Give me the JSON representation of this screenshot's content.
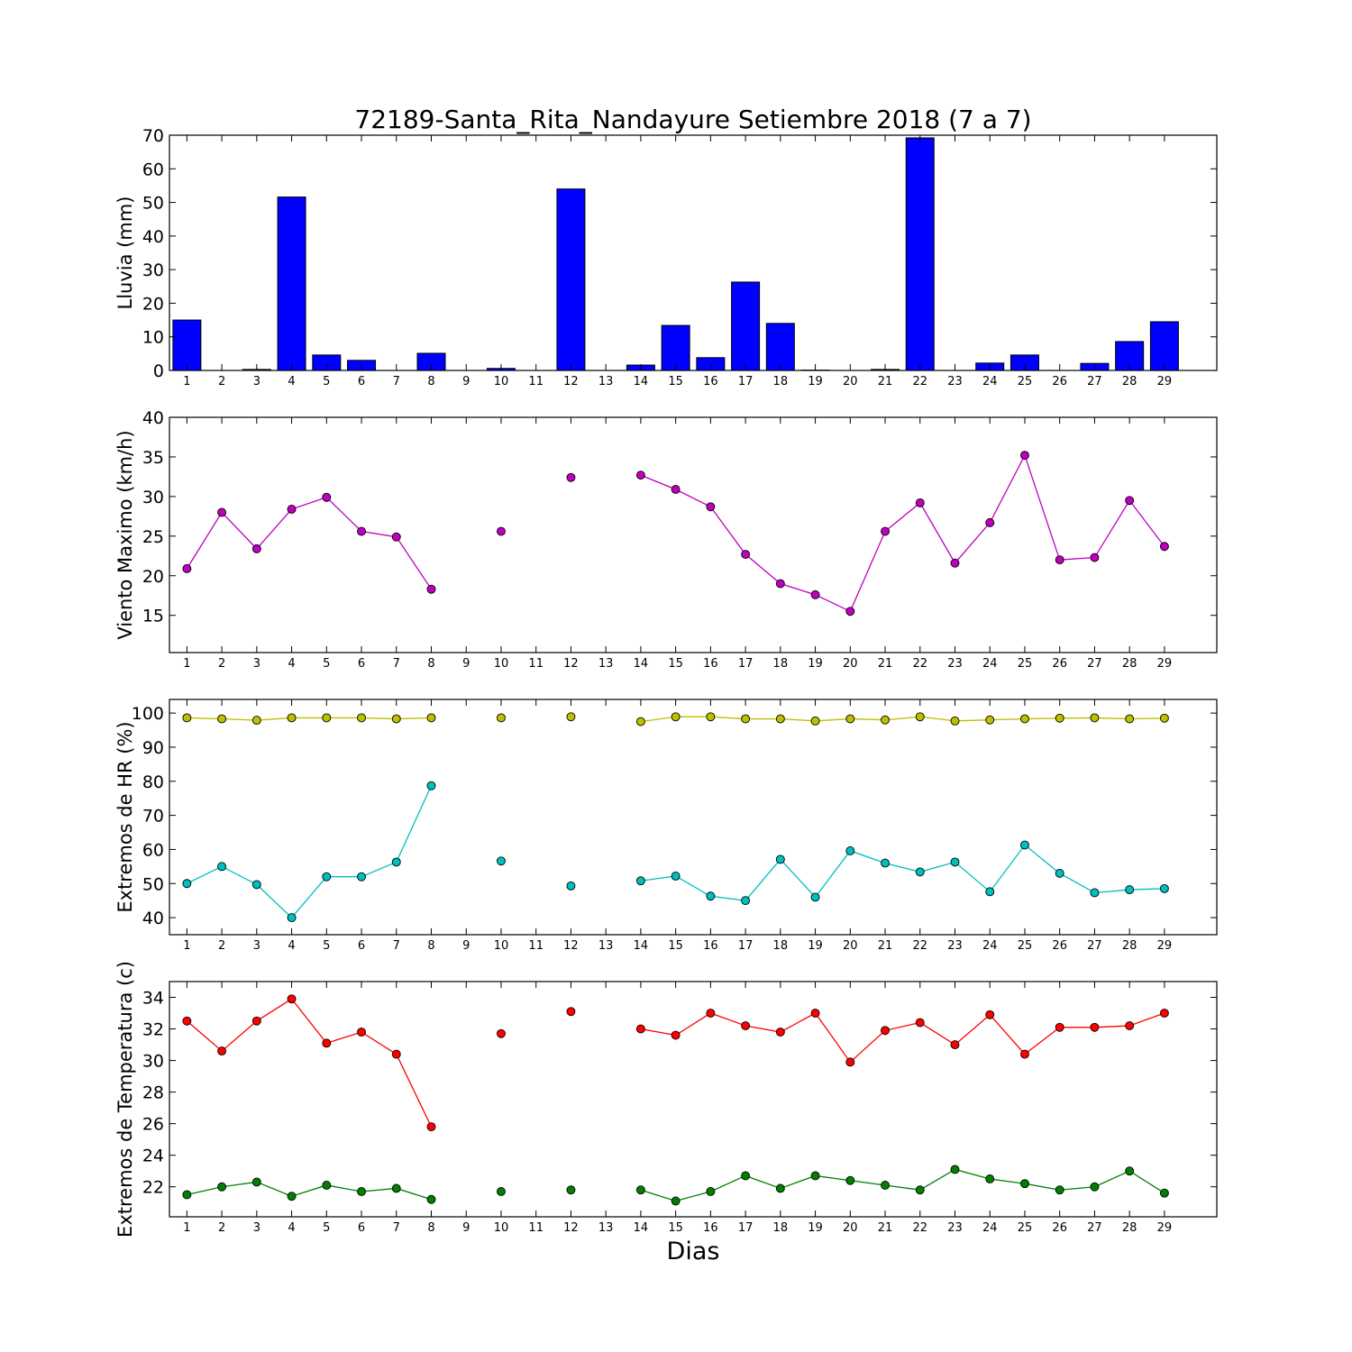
{
  "figure": {
    "title": "72189-Santa_Rita_Nandayure Setiembre 2018  (7 a 7)",
    "xlabel": "Dias"
  },
  "chart_data": [
    {
      "type": "bar",
      "ylabel": "Lluvia (mm)",
      "ylim": [
        0,
        70
      ],
      "yticks": [
        0,
        10,
        20,
        30,
        40,
        50,
        60,
        70
      ],
      "xlim": [
        0.5,
        30.5
      ],
      "x": [
        1,
        2,
        3,
        4,
        5,
        6,
        7,
        8,
        9,
        10,
        11,
        12,
        13,
        14,
        15,
        16,
        17,
        18,
        19,
        20,
        21,
        22,
        23,
        24,
        25,
        26,
        27,
        28,
        29
      ],
      "series": [
        {
          "color": "#0000ff",
          "values": [
            15.0,
            0.0,
            0.3,
            51.6,
            4.6,
            3.0,
            0.0,
            5.1,
            0.0,
            0.6,
            0.0,
            54.0,
            0.0,
            1.6,
            13.4,
            3.8,
            26.3,
            14.0,
            0.1,
            0.0,
            0.3,
            69.2,
            0.0,
            2.2,
            4.6,
            0.0,
            2.1,
            8.6,
            14.5
          ]
        }
      ]
    },
    {
      "type": "line",
      "ylabel": "Viento Maximo (km/h)",
      "ylim": [
        10.3,
        40
      ],
      "yticks": [
        15,
        20,
        25,
        30,
        35,
        40
      ],
      "xlim": [
        0.5,
        30.5
      ],
      "x": [
        1,
        2,
        3,
        4,
        5,
        6,
        7,
        8,
        9,
        10,
        11,
        12,
        13,
        14,
        15,
        16,
        17,
        18,
        19,
        20,
        21,
        22,
        23,
        24,
        25,
        26,
        27,
        28,
        29
      ],
      "series": [
        {
          "color": "#bf00bf",
          "values": [
            20.9,
            28.0,
            23.4,
            28.4,
            29.9,
            25.6,
            24.9,
            18.3,
            null,
            25.6,
            null,
            32.4,
            null,
            32.7,
            30.9,
            28.7,
            22.7,
            19.0,
            17.6,
            15.5,
            25.6,
            29.2,
            21.6,
            26.7,
            35.2,
            22.0,
            22.3,
            29.5,
            23.7
          ]
        }
      ]
    },
    {
      "type": "line",
      "ylabel": "Extremos de HR (%)",
      "ylim": [
        35,
        104
      ],
      "yticks": [
        40,
        50,
        60,
        70,
        80,
        90,
        100
      ],
      "xlim": [
        0.5,
        30.5
      ],
      "x": [
        1,
        2,
        3,
        4,
        5,
        6,
        7,
        8,
        9,
        10,
        11,
        12,
        13,
        14,
        15,
        16,
        17,
        18,
        19,
        20,
        21,
        22,
        23,
        24,
        25,
        26,
        27,
        28,
        29
      ],
      "series": [
        {
          "color": "#bfbf00",
          "values": [
            98.6,
            98.3,
            97.9,
            98.6,
            98.6,
            98.6,
            98.3,
            98.6,
            null,
            98.6,
            null,
            98.9,
            null,
            97.5,
            98.9,
            98.9,
            98.3,
            98.3,
            97.7,
            98.3,
            98.0,
            98.9,
            97.7,
            98.0,
            98.3,
            98.5,
            98.6,
            98.3,
            98.5
          ]
        },
        {
          "color": "#00bfbf",
          "values": [
            50.0,
            55.0,
            49.7,
            40.0,
            52.0,
            52.0,
            56.3,
            78.7,
            null,
            56.6,
            null,
            49.3,
            null,
            50.8,
            52.2,
            46.3,
            45.0,
            57.1,
            46.0,
            59.6,
            56.0,
            53.4,
            56.3,
            47.6,
            61.3,
            53.0,
            47.3,
            48.2,
            48.5
          ]
        }
      ]
    },
    {
      "type": "line",
      "ylabel": "Extremos de Temperatura (c)",
      "ylim": [
        20.1,
        35
      ],
      "yticks": [
        22,
        24,
        26,
        28,
        30,
        32,
        34
      ],
      "xlim": [
        0.5,
        30.5
      ],
      "x": [
        1,
        2,
        3,
        4,
        5,
        6,
        7,
        8,
        9,
        10,
        11,
        12,
        13,
        14,
        15,
        16,
        17,
        18,
        19,
        20,
        21,
        22,
        23,
        24,
        25,
        26,
        27,
        28,
        29
      ],
      "series": [
        {
          "color": "#ff0000",
          "values": [
            32.5,
            30.6,
            32.5,
            33.9,
            31.1,
            31.8,
            30.4,
            25.8,
            null,
            31.7,
            null,
            33.1,
            null,
            32.0,
            31.6,
            33.0,
            32.2,
            31.8,
            33.0,
            29.9,
            31.9,
            32.4,
            31.0,
            32.9,
            30.4,
            32.1,
            32.1,
            32.2,
            33.0
          ]
        },
        {
          "color": "#008000",
          "values": [
            21.5,
            22.0,
            22.3,
            21.4,
            22.1,
            21.7,
            21.9,
            21.2,
            null,
            21.7,
            null,
            21.8,
            null,
            21.8,
            21.1,
            21.7,
            22.7,
            21.9,
            22.7,
            22.4,
            22.1,
            21.8,
            23.1,
            22.5,
            22.2,
            21.8,
            22.0,
            23.0,
            21.6
          ]
        }
      ]
    }
  ]
}
